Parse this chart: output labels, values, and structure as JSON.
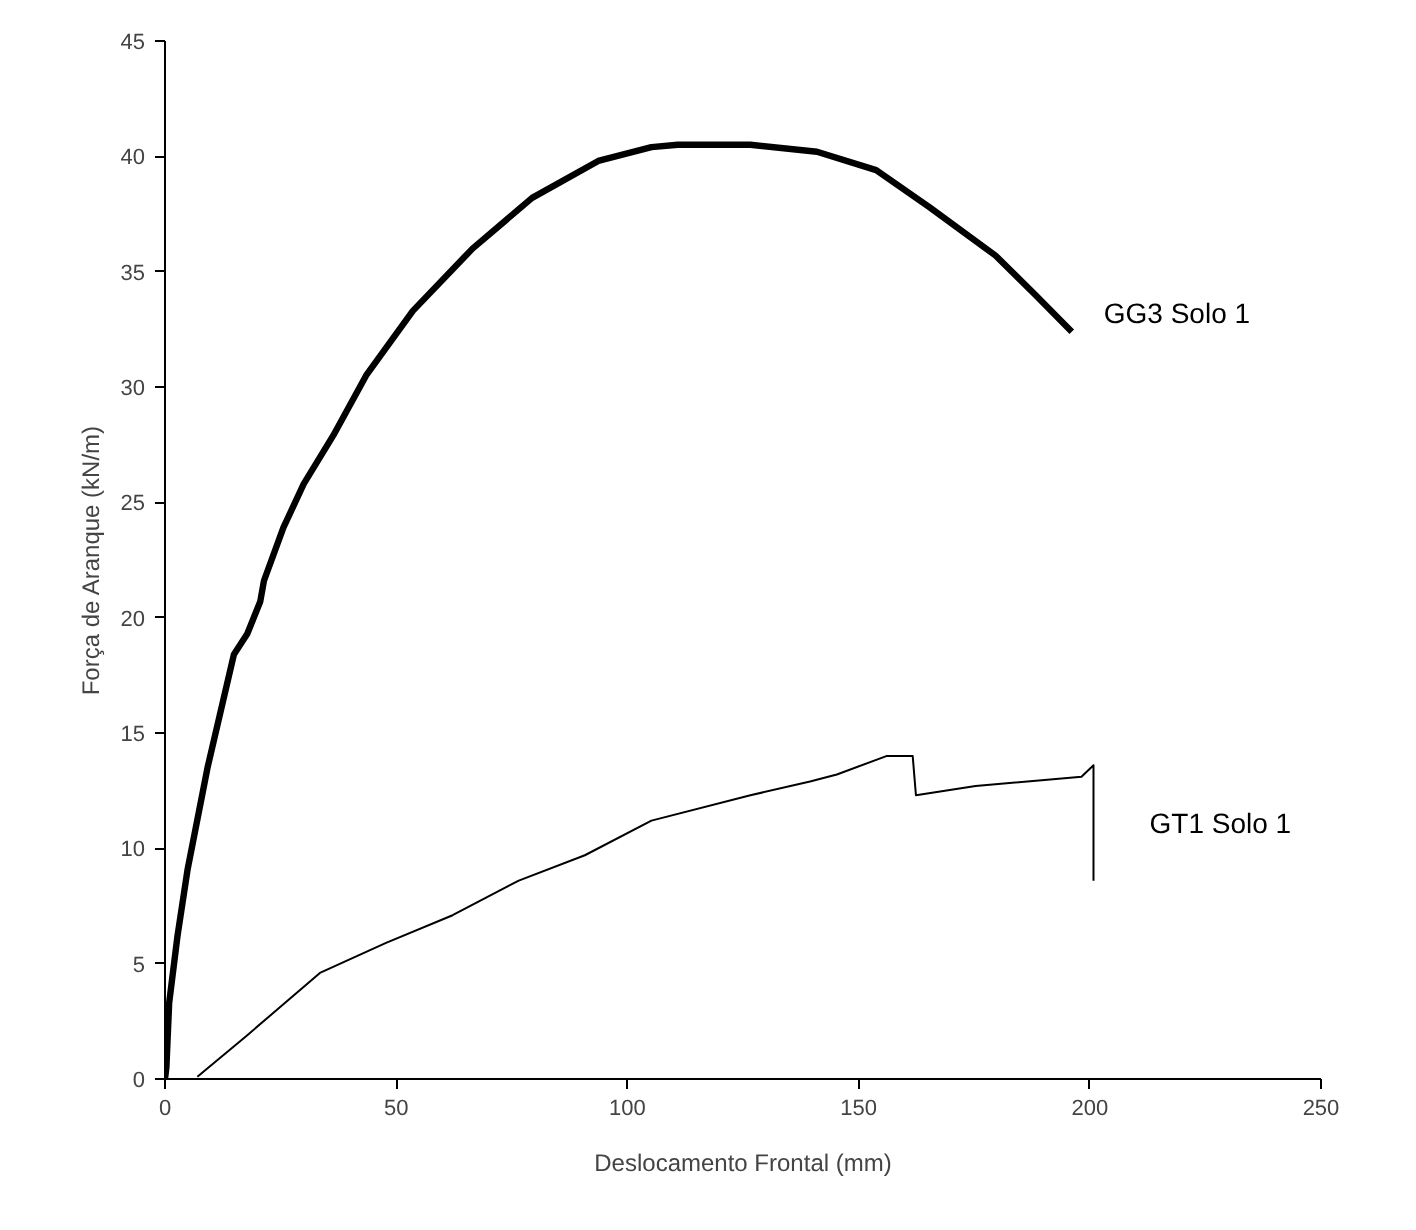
{
  "chart_data": {
    "type": "line",
    "xlabel": "Deslocamento Frontal (mm)",
    "ylabel": "Força de Aranque (kN/m)",
    "xlim": [
      0,
      250
    ],
    "ylim": [
      0,
      45
    ],
    "xticks": [
      0,
      50,
      100,
      150,
      200,
      250
    ],
    "yticks": [
      0,
      5,
      10,
      15,
      20,
      25,
      30,
      35,
      40,
      45
    ],
    "grid": false,
    "legend": false,
    "marker": "none",
    "line_style": "solid",
    "series": [
      {
        "name": "GG3 Solo 1",
        "color": "#000000",
        "x": [
          0,
          0.3,
          0.9,
          2.7,
          4.9,
          9.2,
          14.9,
          17.8,
          20.6,
          21.4,
          25.6,
          30,
          36.4,
          43.5,
          53.6,
          66.5,
          79.4,
          93.7,
          105.2,
          110.9,
          126.6,
          141,
          153.8,
          165.3,
          179.6,
          188.2,
          196.1
        ],
        "values": [
          0,
          0.5,
          3.3,
          6.2,
          9.1,
          13.5,
          18.4,
          19.3,
          20.7,
          21.6,
          23.9,
          25.8,
          27.9,
          30.5,
          33.3,
          36.0,
          38.2,
          39.8,
          40.4,
          40.5,
          40.5,
          40.2,
          39.4,
          37.8,
          35.7,
          34.0,
          32.4
        ]
      },
      {
        "name": "GT1 Solo 1",
        "color": "#000000",
        "x": [
          7.0,
          17.8,
          33.5,
          47.8,
          62.2,
          76.5,
          90.8,
          105.2,
          126.6,
          139.5,
          145.3,
          156,
          161.7,
          162.4,
          175.3,
          198.2,
          200.8,
          200.8
        ],
        "values": [
          0.1,
          1.9,
          4.6,
          5.9,
          7.1,
          8.6,
          9.7,
          11.2,
          12.3,
          12.9,
          13.2,
          14.0,
          14.0,
          12.3,
          12.7,
          13.1,
          13.6,
          8.6
        ]
      }
    ]
  }
}
